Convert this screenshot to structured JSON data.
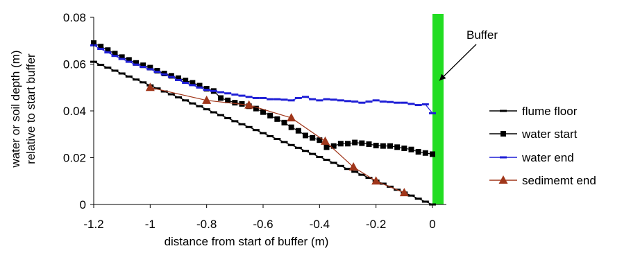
{
  "chart_data": {
    "type": "line",
    "title": "",
    "xlabel": "distance from start of buffer (m)",
    "ylabel_lines": [
      "water or soil depth (m)",
      "relative to start buffer"
    ],
    "xlim": [
      -1.2,
      0.05
    ],
    "ylim": [
      0,
      0.08
    ],
    "x_ticks": [
      -1.2,
      -1,
      -0.8,
      -0.6,
      -0.4,
      -0.2,
      0
    ],
    "x_tick_labels": [
      "-1.2",
      "-1",
      "-0.8",
      "-0.6",
      "-0.4",
      "-0.2",
      "0"
    ],
    "y_ticks": [
      0,
      0.02,
      0.04,
      0.06,
      0.08
    ],
    "y_tick_labels": [
      "0",
      "0.02",
      "0.04",
      "0.06",
      "0.08"
    ],
    "grid": false,
    "legend_position": "right",
    "annotation": {
      "text": "Buffer",
      "arrow_to": [
        0.0,
        0.053
      ]
    },
    "buffer_band": {
      "x_from": 0.0,
      "x_to": 0.05,
      "color": "#22dd22"
    },
    "series": [
      {
        "name": "flume floor",
        "color": "#000000",
        "marker": "dash",
        "x": [
          -1.2,
          -1.175,
          -1.15,
          -1.125,
          -1.1,
          -1.075,
          -1.05,
          -1.025,
          -1.0,
          -0.975,
          -0.95,
          -0.925,
          -0.9,
          -0.875,
          -0.85,
          -0.825,
          -0.8,
          -0.775,
          -0.75,
          -0.725,
          -0.7,
          -0.675,
          -0.65,
          -0.625,
          -0.6,
          -0.575,
          -0.55,
          -0.525,
          -0.5,
          -0.475,
          -0.45,
          -0.425,
          -0.4,
          -0.375,
          -0.35,
          -0.325,
          -0.3,
          -0.275,
          -0.25,
          -0.225,
          -0.2,
          -0.175,
          -0.15,
          -0.125,
          -0.1,
          -0.075,
          -0.05,
          -0.025,
          0.0
        ],
        "y": [
          0.061,
          0.0597,
          0.0585,
          0.0572,
          0.056,
          0.0547,
          0.0534,
          0.0522,
          0.0509,
          0.0496,
          0.0483,
          0.0471,
          0.0458,
          0.0445,
          0.0432,
          0.042,
          0.0407,
          0.0394,
          0.0382,
          0.0369,
          0.0356,
          0.0343,
          0.0331,
          0.0318,
          0.0305,
          0.0292,
          0.028,
          0.0267,
          0.0254,
          0.0242,
          0.0229,
          0.0216,
          0.0203,
          0.0191,
          0.0178,
          0.0165,
          0.0152,
          0.014,
          0.0127,
          0.0114,
          0.0102,
          0.0089,
          0.0076,
          0.0063,
          0.0051,
          0.0038,
          0.0025,
          0.0012,
          0.0
        ]
      },
      {
        "name": "water start",
        "color": "#000000",
        "marker": "square",
        "x": [
          -1.2,
          -1.175,
          -1.15,
          -1.125,
          -1.1,
          -1.075,
          -1.05,
          -1.025,
          -1.0,
          -0.975,
          -0.95,
          -0.925,
          -0.9,
          -0.875,
          -0.85,
          -0.825,
          -0.8,
          -0.775,
          -0.75,
          -0.725,
          -0.7,
          -0.675,
          -0.65,
          -0.625,
          -0.6,
          -0.575,
          -0.55,
          -0.525,
          -0.5,
          -0.475,
          -0.45,
          -0.425,
          -0.4,
          -0.375,
          -0.35,
          -0.325,
          -0.3,
          -0.275,
          -0.25,
          -0.225,
          -0.2,
          -0.175,
          -0.15,
          -0.125,
          -0.1,
          -0.075,
          -0.05,
          -0.025,
          0.0
        ],
        "y": [
          0.069,
          0.0675,
          0.066,
          0.0645,
          0.063,
          0.0618,
          0.0605,
          0.0595,
          0.0585,
          0.0572,
          0.056,
          0.055,
          0.054,
          0.053,
          0.052,
          0.0508,
          0.0495,
          0.0485,
          0.0455,
          0.0445,
          0.0435,
          0.043,
          0.042,
          0.041,
          0.0395,
          0.038,
          0.0365,
          0.035,
          0.033,
          0.0315,
          0.0295,
          0.0285,
          0.0275,
          0.0245,
          0.025,
          0.026,
          0.026,
          0.0265,
          0.0262,
          0.0258,
          0.0252,
          0.025,
          0.025,
          0.0245,
          0.024,
          0.0235,
          0.0225,
          0.022,
          0.0215
        ]
      },
      {
        "name": "water end",
        "color": "#1f1fd6",
        "marker": "dash",
        "x": [
          -1.2,
          -1.175,
          -1.15,
          -1.125,
          -1.1,
          -1.075,
          -1.05,
          -1.025,
          -1.0,
          -0.975,
          -0.95,
          -0.925,
          -0.9,
          -0.875,
          -0.85,
          -0.825,
          -0.8,
          -0.775,
          -0.75,
          -0.725,
          -0.7,
          -0.675,
          -0.65,
          -0.625,
          -0.6,
          -0.575,
          -0.55,
          -0.525,
          -0.5,
          -0.475,
          -0.45,
          -0.425,
          -0.4,
          -0.375,
          -0.35,
          -0.325,
          -0.3,
          -0.275,
          -0.25,
          -0.225,
          -0.2,
          -0.175,
          -0.15,
          -0.125,
          -0.1,
          -0.075,
          -0.05,
          -0.025,
          0.0
        ],
        "y": [
          0.068,
          0.0665,
          0.065,
          0.0635,
          0.0622,
          0.061,
          0.0598,
          0.0588,
          0.0578,
          0.0567,
          0.0556,
          0.0545,
          0.0532,
          0.052,
          0.051,
          0.05,
          0.049,
          0.0485,
          0.048,
          0.0475,
          0.047,
          0.0465,
          0.046,
          0.0455,
          0.0455,
          0.045,
          0.045,
          0.0448,
          0.0445,
          0.0455,
          0.046,
          0.045,
          0.0445,
          0.045,
          0.0448,
          0.0445,
          0.0442,
          0.044,
          0.0435,
          0.044,
          0.0445,
          0.044,
          0.0438,
          0.0435,
          0.0435,
          0.043,
          0.0425,
          0.0428,
          0.039
        ]
      },
      {
        "name": "sedimemt end",
        "color": "#a0361a",
        "marker": "triangle",
        "x": [
          -1.0,
          -0.8,
          -0.65,
          -0.5,
          -0.38,
          -0.28,
          -0.2,
          -0.1
        ],
        "y": [
          0.05,
          0.0445,
          0.0425,
          0.037,
          0.027,
          0.016,
          0.01,
          0.005
        ]
      }
    ]
  }
}
